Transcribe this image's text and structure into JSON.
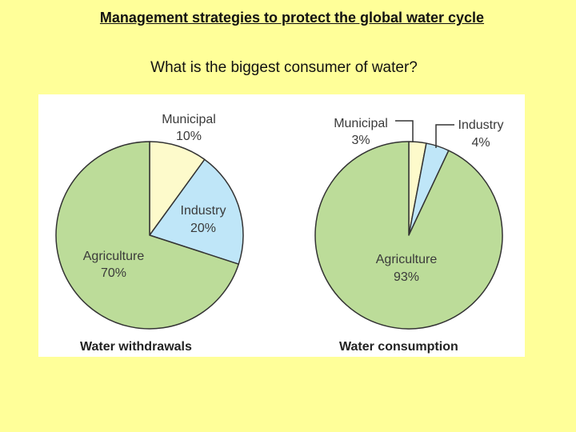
{
  "page": {
    "title": "Management strategies to protect the global water cycle",
    "question": "What is the biggest consumer of water?"
  },
  "colors": {
    "background": "#ffff99",
    "agriculture": "#bcdc99",
    "industry": "#bfe6f8",
    "municipal": "#fdfacb",
    "outline": "#333333"
  },
  "chart_data": [
    {
      "type": "pie",
      "title": "Water withdrawals",
      "slices": [
        {
          "label": "Municipal",
          "value": 10,
          "value_label": "10%"
        },
        {
          "label": "Industry",
          "value": 20,
          "value_label": "20%"
        },
        {
          "label": "Agriculture",
          "value": 70,
          "value_label": "70%"
        }
      ]
    },
    {
      "type": "pie",
      "title": "Water consumption",
      "slices": [
        {
          "label": "Municipal",
          "value": 3,
          "value_label": "3%"
        },
        {
          "label": "Industry",
          "value": 4,
          "value_label": "4%"
        },
        {
          "label": "Agriculture",
          "value": 93,
          "value_label": "93%"
        }
      ]
    }
  ]
}
